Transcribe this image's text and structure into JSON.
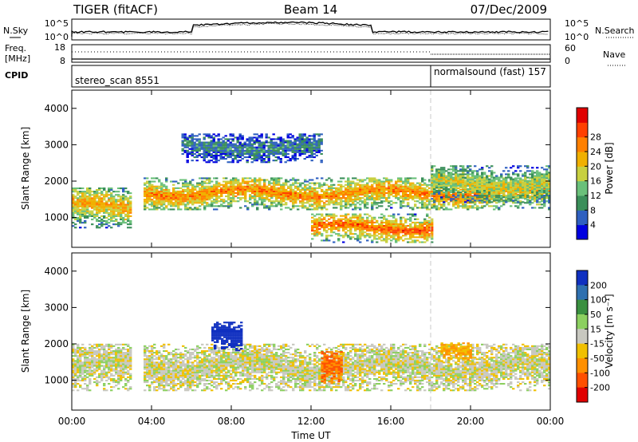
{
  "header": {
    "radar": "TIGER (fitACF)",
    "beam": "Beam 14",
    "date": "07/Dec/2009"
  },
  "nsky_panel": {
    "left_label": "N.Sky",
    "left_ticks": [
      "10^5",
      "10^0"
    ],
    "right_label": "N.Search",
    "right_ticks": [
      "10^5",
      "10^0"
    ]
  },
  "freq_panel": {
    "left_label_line1": "Freq.",
    "left_label_line2": "[MHz]",
    "left_ticks": [
      "18",
      "8"
    ],
    "right_label": "Nave",
    "right_ticks": [
      "60",
      "0"
    ]
  },
  "cpid_panel": {
    "label": "CPID",
    "modes": [
      {
        "name": "stereo_scan 8551",
        "start_hour": 0,
        "end_hour": 18
      },
      {
        "name": "normalsound (fast) 157",
        "start_hour": 18,
        "end_hour": 24
      }
    ]
  },
  "chart_data": [
    {
      "type": "heatmap",
      "parameter": "power",
      "ylabel": "Slant Range [km]",
      "xlim": [
        0,
        24
      ],
      "ylim": [
        180,
        4500
      ],
      "yticks": [
        "1000",
        "2000",
        "3000",
        "4000"
      ],
      "data_gap_hours": [
        3.0,
        3.6
      ],
      "colorbar": {
        "label": "Power [dB]",
        "tick_labels": [
          "4",
          "8",
          "12",
          "16",
          "20",
          "24",
          "28"
        ],
        "colors": [
          "#0000e0",
          "#2f60c0",
          "#3b8f5a",
          "#6ac07a",
          "#c8d040",
          "#f0b000",
          "#ff8000",
          "#ff4000",
          "#e00000"
        ]
      },
      "echo_regions": [
        {
          "name": "F-region band",
          "t_start": 3.6,
          "t_end": 24.0,
          "range_km": [
            1200,
            2100
          ],
          "power_db": 22
        },
        {
          "name": "morning E/F band",
          "t_start": 0.0,
          "t_end": 3.0,
          "range_km": [
            700,
            1800
          ],
          "power_db": 20
        },
        {
          "name": "afternoon lower band",
          "t_start": 12.0,
          "t_end": 18.0,
          "range_km": [
            300,
            1100
          ],
          "power_db": 24
        },
        {
          "name": "high-range scatter",
          "t_start": 5.5,
          "t_end": 12.5,
          "range_km": [
            2500,
            3300
          ],
          "power_db": 8
        },
        {
          "name": "evening band",
          "t_start": 18.0,
          "t_end": 24.0,
          "range_km": [
            1400,
            2400
          ],
          "power_db": 16
        }
      ]
    },
    {
      "type": "heatmap",
      "parameter": "velocity",
      "ylabel": "Slant Range [km]",
      "xlabel": "Time UT",
      "xlim": [
        0,
        24
      ],
      "ylim": [
        180,
        4500
      ],
      "xticks": [
        "00:00",
        "04:00",
        "08:00",
        "12:00",
        "16:00",
        "20:00",
        "00:00"
      ],
      "yticks": [
        "1000",
        "2000",
        "3000",
        "4000"
      ],
      "data_gap_hours": [
        3.0,
        3.6
      ],
      "colorbar": {
        "label": "Velocity [m s⁻¹]",
        "tick_labels": [
          "200",
          "100",
          "50",
          "15",
          "-15",
          "-50",
          "-100",
          "-200"
        ],
        "colors": [
          "#1030c0",
          "#2f70b0",
          "#3a9040",
          "#8cd060",
          "#c8c8c0",
          "#f0c000",
          "#ff9000",
          "#ff5000",
          "#e00000"
        ]
      },
      "echo_regions": [
        {
          "name": "ground scatter band",
          "t_start": 0.0,
          "t_end": 24.0,
          "range_km": [
            700,
            2000
          ],
          "velocity_ms": 0
        },
        {
          "name": "negative velocity patch",
          "t_start": 12.5,
          "t_end": 13.5,
          "range_km": [
            900,
            1800
          ],
          "velocity_ms": -100
        },
        {
          "name": "positive velocity patch",
          "t_start": 7.0,
          "t_end": 8.5,
          "range_km": [
            1800,
            2600
          ],
          "velocity_ms": 200
        },
        {
          "name": "evening positive patch",
          "t_start": 18.5,
          "t_end": 20.0,
          "range_km": [
            1500,
            2000
          ],
          "velocity_ms": -50
        }
      ]
    }
  ]
}
